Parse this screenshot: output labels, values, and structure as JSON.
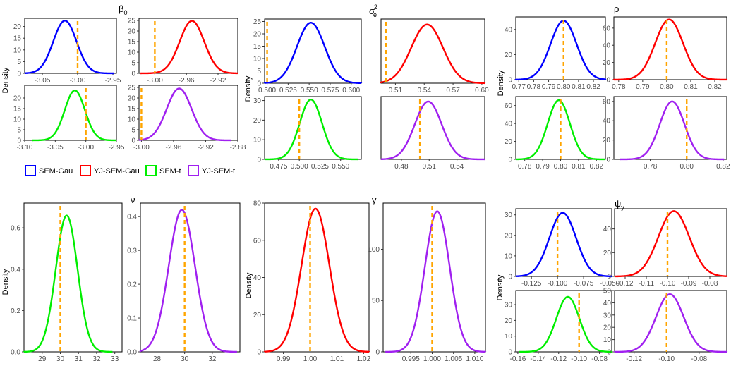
{
  "colors": {
    "sem_gau": "#0000ff",
    "yj_sem_gau": "#ff0000",
    "sem_t": "#00ee00",
    "yj_sem_t": "#a020f0",
    "true_value": "#ffa500"
  },
  "y_axis_label": "Density",
  "legend": [
    {
      "label": "SEM-Gau",
      "color": "#0000ff"
    },
    {
      "label": "YJ-SEM-Gau",
      "color": "#ff0000"
    },
    {
      "label": "SEM-t",
      "color": "#00ee00"
    },
    {
      "label": "YJ-SEM-t",
      "color": "#a020f0"
    }
  ],
  "chart_data": [
    {
      "group": "beta0",
      "title": "β",
      "title_sub": "0",
      "title_sup": "",
      "series": "SEM-Gau",
      "color": "#0000ff",
      "type": "line",
      "xlim": [
        -3.075,
        -2.945
      ],
      "ylim": [
        0,
        23.5
      ],
      "xticks": [
        -3.05,
        -3.0,
        -2.95
      ],
      "xtick_labels": [
        "-3.05",
        "-3.00",
        "-2.95"
      ],
      "yticks": [
        0,
        5,
        10,
        15,
        20
      ],
      "mean": -3.018,
      "sd": 0.0165,
      "peak": 22.5,
      "true_value": -3.0
    },
    {
      "group": "beta0",
      "series": "YJ-SEM-Gau",
      "color": "#ff0000",
      "type": "line",
      "xlim": [
        -3.02,
        -2.895
      ],
      "ylim": [
        0,
        26
      ],
      "xticks": [
        -3.0,
        -2.96,
        -2.92
      ],
      "xtick_labels": [
        "-3.00",
        "-2.96",
        "-2.92"
      ],
      "yticks": [
        0,
        5,
        10,
        15,
        20,
        25
      ],
      "mean": -2.953,
      "sd": 0.0155,
      "peak": 24.8,
      "true_value": -3.0
    },
    {
      "group": "beta0",
      "series": "SEM-t",
      "color": "#00ee00",
      "type": "line",
      "xlim": [
        -3.1,
        -2.95
      ],
      "ylim": [
        0,
        26
      ],
      "xticks": [
        -3.1,
        -3.05,
        -3.0,
        -2.95
      ],
      "xtick_labels": [
        "-3.10",
        "-3.05",
        "-3.00",
        "-2.95"
      ],
      "yticks": [
        0,
        5,
        10,
        15,
        20
      ],
      "mean": -3.018,
      "sd": 0.0165,
      "peak": 23.6,
      "true_value": -3.0
    },
    {
      "group": "beta0",
      "series": "YJ-SEM-t",
      "color": "#a020f0",
      "type": "line",
      "xlim": [
        -3.003,
        -2.88
      ],
      "ylim": [
        0,
        26
      ],
      "xticks": [
        -3.0,
        -2.96,
        -2.92,
        -2.88
      ],
      "xtick_labels": [
        "-3.00",
        "-2.96",
        "-2.92",
        "-2.88"
      ],
      "yticks": [
        0,
        5,
        10,
        15,
        20,
        25
      ],
      "mean": -2.953,
      "sd": 0.0155,
      "peak": 24.5,
      "true_value": -3.0
    },
    {
      "group": "sigma",
      "title": "σ",
      "title_sub": "e",
      "title_sup": "2",
      "series": "SEM-Gau",
      "color": "#0000ff",
      "type": "line",
      "xlim": [
        0.497,
        0.612
      ],
      "ylim": [
        0,
        26
      ],
      "xticks": [
        0.5,
        0.525,
        0.55,
        0.575,
        0.6
      ],
      "xtick_labels": [
        "0.500",
        "0.525",
        "0.550",
        "0.575",
        "0.600"
      ],
      "yticks": [
        0,
        5,
        10,
        15,
        20,
        25
      ],
      "mean": 0.552,
      "sd": 0.0165,
      "peak": 24.5,
      "true_value": 0.5
    },
    {
      "group": "sigma",
      "series": "YJ-SEM-Gau",
      "color": "#ff0000",
      "type": "line",
      "xlim": [
        0.495,
        0.603
      ],
      "ylim": [
        0,
        27
      ],
      "xticks": [
        0.51,
        0.54,
        0.57,
        0.6
      ],
      "xtick_labels": [
        "0.51",
        "0.54",
        "0.57",
        "0.60"
      ],
      "yticks": [],
      "mean": 0.543,
      "sd": 0.0165,
      "peak": 24.7,
      "true_value": 0.5
    },
    {
      "group": "sigma",
      "series": "SEM-t",
      "color": "#00ee00",
      "type": "line",
      "xlim": [
        0.458,
        0.575
      ],
      "ylim": [
        0,
        32
      ],
      "xticks": [
        0.475,
        0.5,
        0.525,
        0.55
      ],
      "xtick_labels": [
        "0.475",
        "0.500",
        "0.525",
        "0.550"
      ],
      "yticks": [
        0,
        10,
        20,
        30
      ],
      "mean": 0.514,
      "sd": 0.0135,
      "peak": 30.5,
      "true_value": 0.5
    },
    {
      "group": "sigma",
      "series": "YJ-SEM-t",
      "color": "#a020f0",
      "type": "line",
      "xlim": [
        0.458,
        0.57
      ],
      "ylim": [
        0,
        32
      ],
      "xticks": [
        0.48,
        0.51,
        0.54
      ],
      "xtick_labels": [
        "0.48",
        "0.51",
        "0.54"
      ],
      "yticks": [],
      "mean": 0.509,
      "sd": 0.0145,
      "peak": 29.5,
      "true_value": 0.5
    },
    {
      "group": "rho",
      "title": "ρ",
      "title_sub": "",
      "title_sup": "",
      "series": "SEM-Gau",
      "color": "#0000ff",
      "type": "line",
      "xlim": [
        0.768,
        0.828
      ],
      "ylim": [
        0,
        50
      ],
      "xticks": [
        0.77,
        0.78,
        0.79,
        0.8,
        0.81,
        0.82
      ],
      "xtick_labels": [
        "0.77",
        "0.78",
        "0.79",
        "0.80",
        "0.81",
        "0.82"
      ],
      "yticks": [
        0,
        20,
        40
      ],
      "mean": 0.8,
      "sd": 0.0087,
      "peak": 47,
      "true_value": 0.8
    },
    {
      "group": "rho",
      "series": "YJ-SEM-Gau",
      "color": "#ff0000",
      "type": "line",
      "xlim": [
        0.778,
        0.825
      ],
      "ylim": [
        0,
        73
      ],
      "xticks": [
        0.78,
        0.79,
        0.8,
        0.81,
        0.82
      ],
      "xtick_labels": [
        "0.78",
        "0.79",
        "0.80",
        "0.81",
        "0.82"
      ],
      "yticks": [
        0,
        20,
        40,
        60
      ],
      "mean": 0.801,
      "sd": 0.0058,
      "peak": 70,
      "true_value": 0.8
    },
    {
      "group": "rho",
      "series": "SEM-t",
      "color": "#00ee00",
      "type": "line",
      "xlim": [
        0.775,
        0.825
      ],
      "ylim": [
        0,
        70
      ],
      "xticks": [
        0.78,
        0.79,
        0.8,
        0.81,
        0.82
      ],
      "xtick_labels": [
        "0.78",
        "0.79",
        "0.80",
        "0.81",
        "0.82"
      ],
      "yticks": [
        0,
        20,
        40,
        60
      ],
      "mean": 0.799,
      "sd": 0.0062,
      "peak": 66,
      "true_value": 0.8
    },
    {
      "group": "rho",
      "series": "YJ-SEM-t",
      "color": "#a020f0",
      "type": "line",
      "xlim": [
        0.76,
        0.822
      ],
      "ylim": [
        0,
        65
      ],
      "xticks": [
        0.78,
        0.8,
        0.82
      ],
      "xtick_labels": [
        "0.78",
        "0.80",
        "0.82"
      ],
      "yticks": [
        0,
        20,
        40,
        60
      ],
      "mean": 0.792,
      "sd": 0.0068,
      "peak": 60,
      "true_value": 0.8
    },
    {
      "group": "nu",
      "title": "ν",
      "title_sub": "",
      "title_sup": "",
      "series": "SEM-t",
      "color": "#00ee00",
      "type": "line",
      "xlim": [
        28.0,
        33.4
      ],
      "ylim": [
        0,
        0.72
      ],
      "xticks": [
        29,
        30,
        31,
        32,
        33
      ],
      "xtick_labels": [
        "29",
        "30",
        "31",
        "32",
        "33"
      ],
      "yticks": [
        0,
        0.2,
        0.4,
        0.6
      ],
      "ytick_labels": [
        "0.0",
        "0.2",
        "0.4",
        "0.6"
      ],
      "mean": 30.35,
      "sd": 0.6,
      "peak": 0.66,
      "true_value": 30
    },
    {
      "group": "nu",
      "series": "YJ-SEM-t",
      "color": "#a020f0",
      "type": "line",
      "xlim": [
        26.8,
        34.0
      ],
      "ylim": [
        0,
        0.44
      ],
      "xticks": [
        28,
        30,
        32
      ],
      "xtick_labels": [
        "28",
        "30",
        "32"
      ],
      "yticks": [
        0,
        0.1,
        0.2,
        0.3,
        0.4
      ],
      "ytick_labels": [
        "0.0",
        "0.1",
        "0.2",
        "0.3",
        "0.4"
      ],
      "mean": 29.8,
      "sd": 0.95,
      "peak": 0.42,
      "true_value": 30
    },
    {
      "group": "gamma",
      "title": "γ",
      "title_sub": "",
      "title_sup": "",
      "series": "YJ-SEM-Gau",
      "color": "#ff0000",
      "type": "line",
      "xlim": [
        0.983,
        1.022
      ],
      "ylim": [
        0,
        80
      ],
      "xticks": [
        0.99,
        1.0,
        1.01,
        1.02
      ],
      "xtick_labels": [
        "0.99",
        "1.00",
        "1.01",
        "1.02"
      ],
      "yticks": [
        0,
        20,
        40,
        60,
        80
      ],
      "mean": 1.002,
      "sd": 0.0052,
      "peak": 77,
      "true_value": 1.0
    },
    {
      "group": "gamma",
      "series": "YJ-SEM-t",
      "color": "#a020f0",
      "type": "line",
      "xlim": [
        0.9885,
        1.0125
      ],
      "ylim": [
        0,
        145
      ],
      "xticks": [
        0.995,
        1.0,
        1.005,
        1.01
      ],
      "xtick_labels": [
        "0.995",
        "1.000",
        "1.005",
        "1.010"
      ],
      "yticks": [
        0,
        50,
        100
      ],
      "mean": 1.0012,
      "sd": 0.0029,
      "peak": 137,
      "true_value": 1.0
    },
    {
      "group": "psi",
      "title": "ψ",
      "title_sub": "y",
      "title_sup": "",
      "series": "SEM-Gau",
      "color": "#0000ff",
      "type": "line",
      "xlim": [
        -0.14,
        -0.048
      ],
      "ylim": [
        0,
        33
      ],
      "xticks": [
        -0.125,
        -0.1,
        -0.075,
        -0.05
      ],
      "xtick_labels": [
        "-0.125",
        "-0.100",
        "-0.075",
        "-0.050"
      ],
      "yticks": [
        0,
        10,
        20,
        30
      ],
      "mean": -0.095,
      "sd": 0.0128,
      "peak": 31,
      "true_value": -0.1
    },
    {
      "group": "psi",
      "series": "YJ-SEM-Gau",
      "color": "#ff0000",
      "type": "line",
      "xlim": [
        -0.125,
        -0.072
      ],
      "ylim": [
        0,
        57
      ],
      "xticks": [
        -0.12,
        -0.11,
        -0.1,
        -0.09,
        -0.08
      ],
      "xtick_labels": [
        "-0.12",
        "-0.11",
        "-0.10",
        "-0.09",
        "-0.08"
      ],
      "yticks": [
        0,
        20,
        40
      ],
      "mean": -0.097,
      "sd": 0.0073,
      "peak": 55,
      "true_value": -0.1
    },
    {
      "group": "psi",
      "series": "SEM-t",
      "color": "#00ee00",
      "type": "line",
      "xlim": [
        -0.162,
        -0.068
      ],
      "ylim": [
        0,
        39
      ],
      "xticks": [
        -0.16,
        -0.14,
        -0.12,
        -0.1,
        -0.08
      ],
      "xtick_labels": [
        "-0.16",
        "-0.14",
        "-0.12",
        "-0.10",
        "-0.08"
      ],
      "yticks": [
        0,
        10,
        20,
        30
      ],
      "mean": -0.111,
      "sd": 0.0113,
      "peak": 35,
      "true_value": -0.1
    },
    {
      "group": "psi",
      "series": "YJ-SEM-t",
      "color": "#a020f0",
      "type": "line",
      "xlim": [
        -0.132,
        -0.063
      ],
      "ylim": [
        0,
        50
      ],
      "xticks": [
        -0.12,
        -0.1,
        -0.08
      ],
      "xtick_labels": [
        "-0.12",
        "-0.10",
        "-0.08"
      ],
      "yticks": [
        0,
        10,
        20,
        30,
        40,
        50
      ],
      "mean": -0.098,
      "sd": 0.0085,
      "peak": 47,
      "true_value": -0.1
    }
  ]
}
